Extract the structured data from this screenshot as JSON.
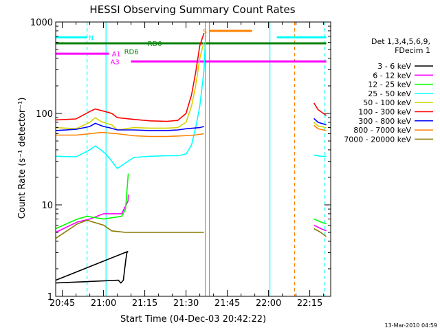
{
  "chart_data": {
    "type": "line",
    "title": "HESSI Observing Summary Count Rates",
    "xlabel": "Start Time (04-Dec-03 20:42:22)",
    "ylabel": "Count Rate (s⁻¹ detector⁻¹)",
    "x_start_minutes_label": "20:42:22",
    "x_ticks": [
      "20:45",
      "21:00",
      "21:15",
      "21:30",
      "21:45",
      "22:00",
      "22:15"
    ],
    "y_scale": "log",
    "ylim": [
      1,
      1000
    ],
    "y_ticks": [
      "1",
      "10",
      "100",
      "1000"
    ],
    "legend_header": [
      "Det 1,3,4,5,6,9,",
      "FDecim 1"
    ],
    "footer_date": "13-Mar-2010 04:59",
    "series": [
      {
        "name": "3 - 6 keV",
        "color": "#000000",
        "points": [
          [
            -2.4,
            1.4
          ],
          [
            20.4,
            1.5
          ],
          [
            21.3,
            1.4
          ],
          [
            22.2,
            1.5
          ],
          [
            22.7,
            2.0
          ],
          [
            23.1,
            2.5
          ],
          [
            23.5,
            3.0
          ],
          [
            23.9,
            3.1
          ],
          [
            -2.4,
            1.5
          ]
        ]
      },
      {
        "name": "6 - 12 keV",
        "color": "#ff00ff",
        "points": [
          [
            -2.4,
            5.0
          ],
          [
            5.5,
            6.5
          ],
          [
            10.0,
            7.0
          ],
          [
            15.0,
            8.0
          ],
          [
            21.6,
            8.0
          ],
          [
            23.9,
            11.0
          ],
          [
            24.0,
            13.0
          ]
        ]
      },
      {
        "name": "12 - 25 keV",
        "color": "#00ff00",
        "points": [
          [
            -2.4,
            5.5
          ],
          [
            5.5,
            7.0
          ],
          [
            9.0,
            7.5
          ],
          [
            15.0,
            7.0
          ],
          [
            21.6,
            7.5
          ],
          [
            23.0,
            9.0
          ],
          [
            24.0,
            22.0
          ]
        ]
      },
      {
        "name": "25 - 50 keV",
        "color": "#00ffff",
        "points": [
          [
            -2.4,
            34.0
          ],
          [
            5.0,
            33.5
          ],
          [
            10.0,
            40.0
          ],
          [
            12.0,
            44.0
          ],
          [
            14.0,
            40.0
          ],
          [
            15.8,
            36.0
          ],
          [
            18.0,
            30.0
          ],
          [
            20.0,
            25.0
          ],
          [
            26.0,
            33.0
          ],
          [
            32.0,
            34.0
          ],
          [
            38.0,
            34.5
          ],
          [
            42.0,
            34.5
          ],
          [
            45.0,
            36.0
          ],
          [
            47.0,
            45.0
          ],
          [
            48.5,
            70.0
          ],
          [
            50.0,
            120.0
          ],
          [
            51.5,
            290.0
          ],
          [
            52.0,
            600.0
          ]
        ]
      },
      {
        "name": "50 - 100 keV",
        "color": "#d4d400",
        "points": [
          [
            -2.4,
            70.0
          ],
          [
            5.0,
            68.0
          ],
          [
            10.0,
            80.0
          ],
          [
            12.0,
            90.0
          ],
          [
            14.0,
            82.0
          ],
          [
            16.0,
            78.0
          ],
          [
            18.0,
            75.0
          ],
          [
            20.0,
            66.0
          ],
          [
            26.0,
            70.0
          ],
          [
            32.0,
            69.0
          ],
          [
            38.0,
            69.0
          ],
          [
            42.0,
            70.0
          ],
          [
            45.0,
            80.0
          ],
          [
            47.0,
            120.0
          ],
          [
            48.5,
            200.0
          ],
          [
            50.0,
            400.0
          ],
          [
            51.5,
            600.0
          ]
        ]
      },
      {
        "name": "100 - 300 keV",
        "color": "#ff0000",
        "points": [
          [
            -2.4,
            85.0
          ],
          [
            5.0,
            87.0
          ],
          [
            10.0,
            105.0
          ],
          [
            12.0,
            112.0
          ],
          [
            14.0,
            108.0
          ],
          [
            16.0,
            104.0
          ],
          [
            18.0,
            100.0
          ],
          [
            20.0,
            90.0
          ],
          [
            26.0,
            86.0
          ],
          [
            32.0,
            83.0
          ],
          [
            38.0,
            82.0
          ],
          [
            42.0,
            84.0
          ],
          [
            45.0,
            100.0
          ],
          [
            47.0,
            160.0
          ],
          [
            48.5,
            280.0
          ],
          [
            50.0,
            550.0
          ],
          [
            51.5,
            750.0
          ]
        ]
      },
      {
        "name": "300 - 800 keV",
        "color": "#0000ff",
        "points": [
          [
            -2.4,
            65.0
          ],
          [
            5.0,
            67.0
          ],
          [
            10.0,
            72.0
          ],
          [
            12.0,
            78.0
          ],
          [
            15.0,
            72.0
          ],
          [
            17.0,
            70.0
          ],
          [
            20.0,
            66.0
          ],
          [
            26.0,
            66.0
          ],
          [
            32.0,
            65.0
          ],
          [
            38.0,
            65.0
          ],
          [
            42.0,
            66.0
          ],
          [
            45.0,
            68.0
          ],
          [
            50.0,
            70.0
          ],
          [
            51.5,
            72.0
          ]
        ]
      },
      {
        "name": "800 - 7000 keV",
        "color": "#ff8000",
        "points": [
          [
            -2.4,
            58.0
          ],
          [
            5.0,
            58.0
          ],
          [
            10.0,
            60.0
          ],
          [
            14.0,
            62.0
          ],
          [
            20.0,
            60.0
          ],
          [
            26.0,
            57.0
          ],
          [
            32.0,
            56.0
          ],
          [
            38.0,
            56.0
          ],
          [
            44.0,
            57.0
          ],
          [
            48.0,
            58.0
          ],
          [
            51.5,
            60.0
          ]
        ]
      },
      {
        "name": "7000 - 20000 keV",
        "color": "#8b7a00",
        "points": [
          [
            -2.4,
            4.3
          ],
          [
            5.5,
            6.2
          ],
          [
            9.0,
            6.8
          ],
          [
            15.0,
            6.0
          ],
          [
            18.0,
            5.2
          ],
          [
            23.0,
            5.0
          ],
          [
            30.0,
            5.0
          ],
          [
            40.0,
            5.0
          ],
          [
            45.0,
            5.0
          ],
          [
            51.5,
            5.0
          ]
        ]
      }
    ],
    "series_right": [
      {
        "color": "#ff0000",
        "points": [
          [
            91.5,
            130.0
          ],
          [
            93.0,
            110.0
          ],
          [
            96.0,
            95.0
          ]
        ]
      },
      {
        "color": "#0000ff",
        "points": [
          [
            91.5,
            88.0
          ],
          [
            93.0,
            80.0
          ],
          [
            96.0,
            75.0
          ]
        ]
      },
      {
        "color": "#d4d400",
        "points": [
          [
            91.5,
            80.0
          ],
          [
            93.0,
            73.0
          ],
          [
            96.0,
            70.0
          ]
        ]
      },
      {
        "color": "#ff8000",
        "points": [
          [
            91.5,
            74.0
          ],
          [
            93.0,
            68.0
          ],
          [
            96.0,
            65.0
          ]
        ]
      },
      {
        "color": "#00ffff",
        "points": [
          [
            91.5,
            35.0
          ],
          [
            94.0,
            34.0
          ],
          [
            96.0,
            34.0
          ]
        ]
      },
      {
        "color": "#00ff00",
        "points": [
          [
            91.5,
            7.0
          ],
          [
            94.0,
            6.5
          ],
          [
            96.0,
            6.2
          ]
        ]
      },
      {
        "color": "#ff00ff",
        "points": [
          [
            91.5,
            6.0
          ],
          [
            94.0,
            5.5
          ],
          [
            96.0,
            5.2
          ]
        ]
      },
      {
        "color": "#8b7a00",
        "points": [
          [
            91.5,
            5.5
          ],
          [
            94.0,
            5.0
          ],
          [
            96.0,
            4.5
          ]
        ]
      }
    ],
    "flag_bars": [
      {
        "label": "N",
        "color": "#00ffff",
        "y": 680.0,
        "x0": -2.4,
        "x1": 9.0,
        "label_at": 9.5
      },
      {
        "label": "",
        "color": "#00ffff",
        "y": 680.0,
        "x0": 78.0,
        "x1": 96.0,
        "label_at": null
      },
      {
        "label": "RD0",
        "color": "#008000",
        "y": 585.0,
        "x0": -2.4,
        "x1": 96.0,
        "label_at": 31.0
      },
      {
        "label": "RD6",
        "color": "#008000",
        "y": 480.0,
        "x0": null,
        "x1": null,
        "label_at": 22.5
      },
      {
        "label": "A1",
        "color": "#ff00ff",
        "y": 450.0,
        "x0": -2.4,
        "x1": 17.0,
        "label_at": 18.0
      },
      {
        "label": "A3",
        "color": "#ff00ff",
        "y": 370.0,
        "x0": 25.0,
        "x1": 96.0,
        "label_at": 17.5
      },
      {
        "label": "S",
        "color": "#ff8000",
        "y": 800.0,
        "x0": 53.5,
        "x1": 69.0,
        "label_at": 51.0
      }
    ],
    "vlines": [
      {
        "color": "#00ffff",
        "style": "dashed",
        "x": 9.0
      },
      {
        "color": "#00ffff",
        "style": "solid",
        "x": 15.9
      },
      {
        "color": "#ff8000",
        "style": "solid",
        "x": 52.0
      },
      {
        "color": "#ff8000",
        "style": "solid",
        "x": 53.5
      },
      {
        "color": "#00ffff",
        "style": "solid",
        "x": 75.5
      },
      {
        "color": "#ff8000",
        "style": "dashed",
        "x": 84.5
      },
      {
        "color": "#00ffff",
        "style": "dashed",
        "x": 95.5
      }
    ]
  }
}
